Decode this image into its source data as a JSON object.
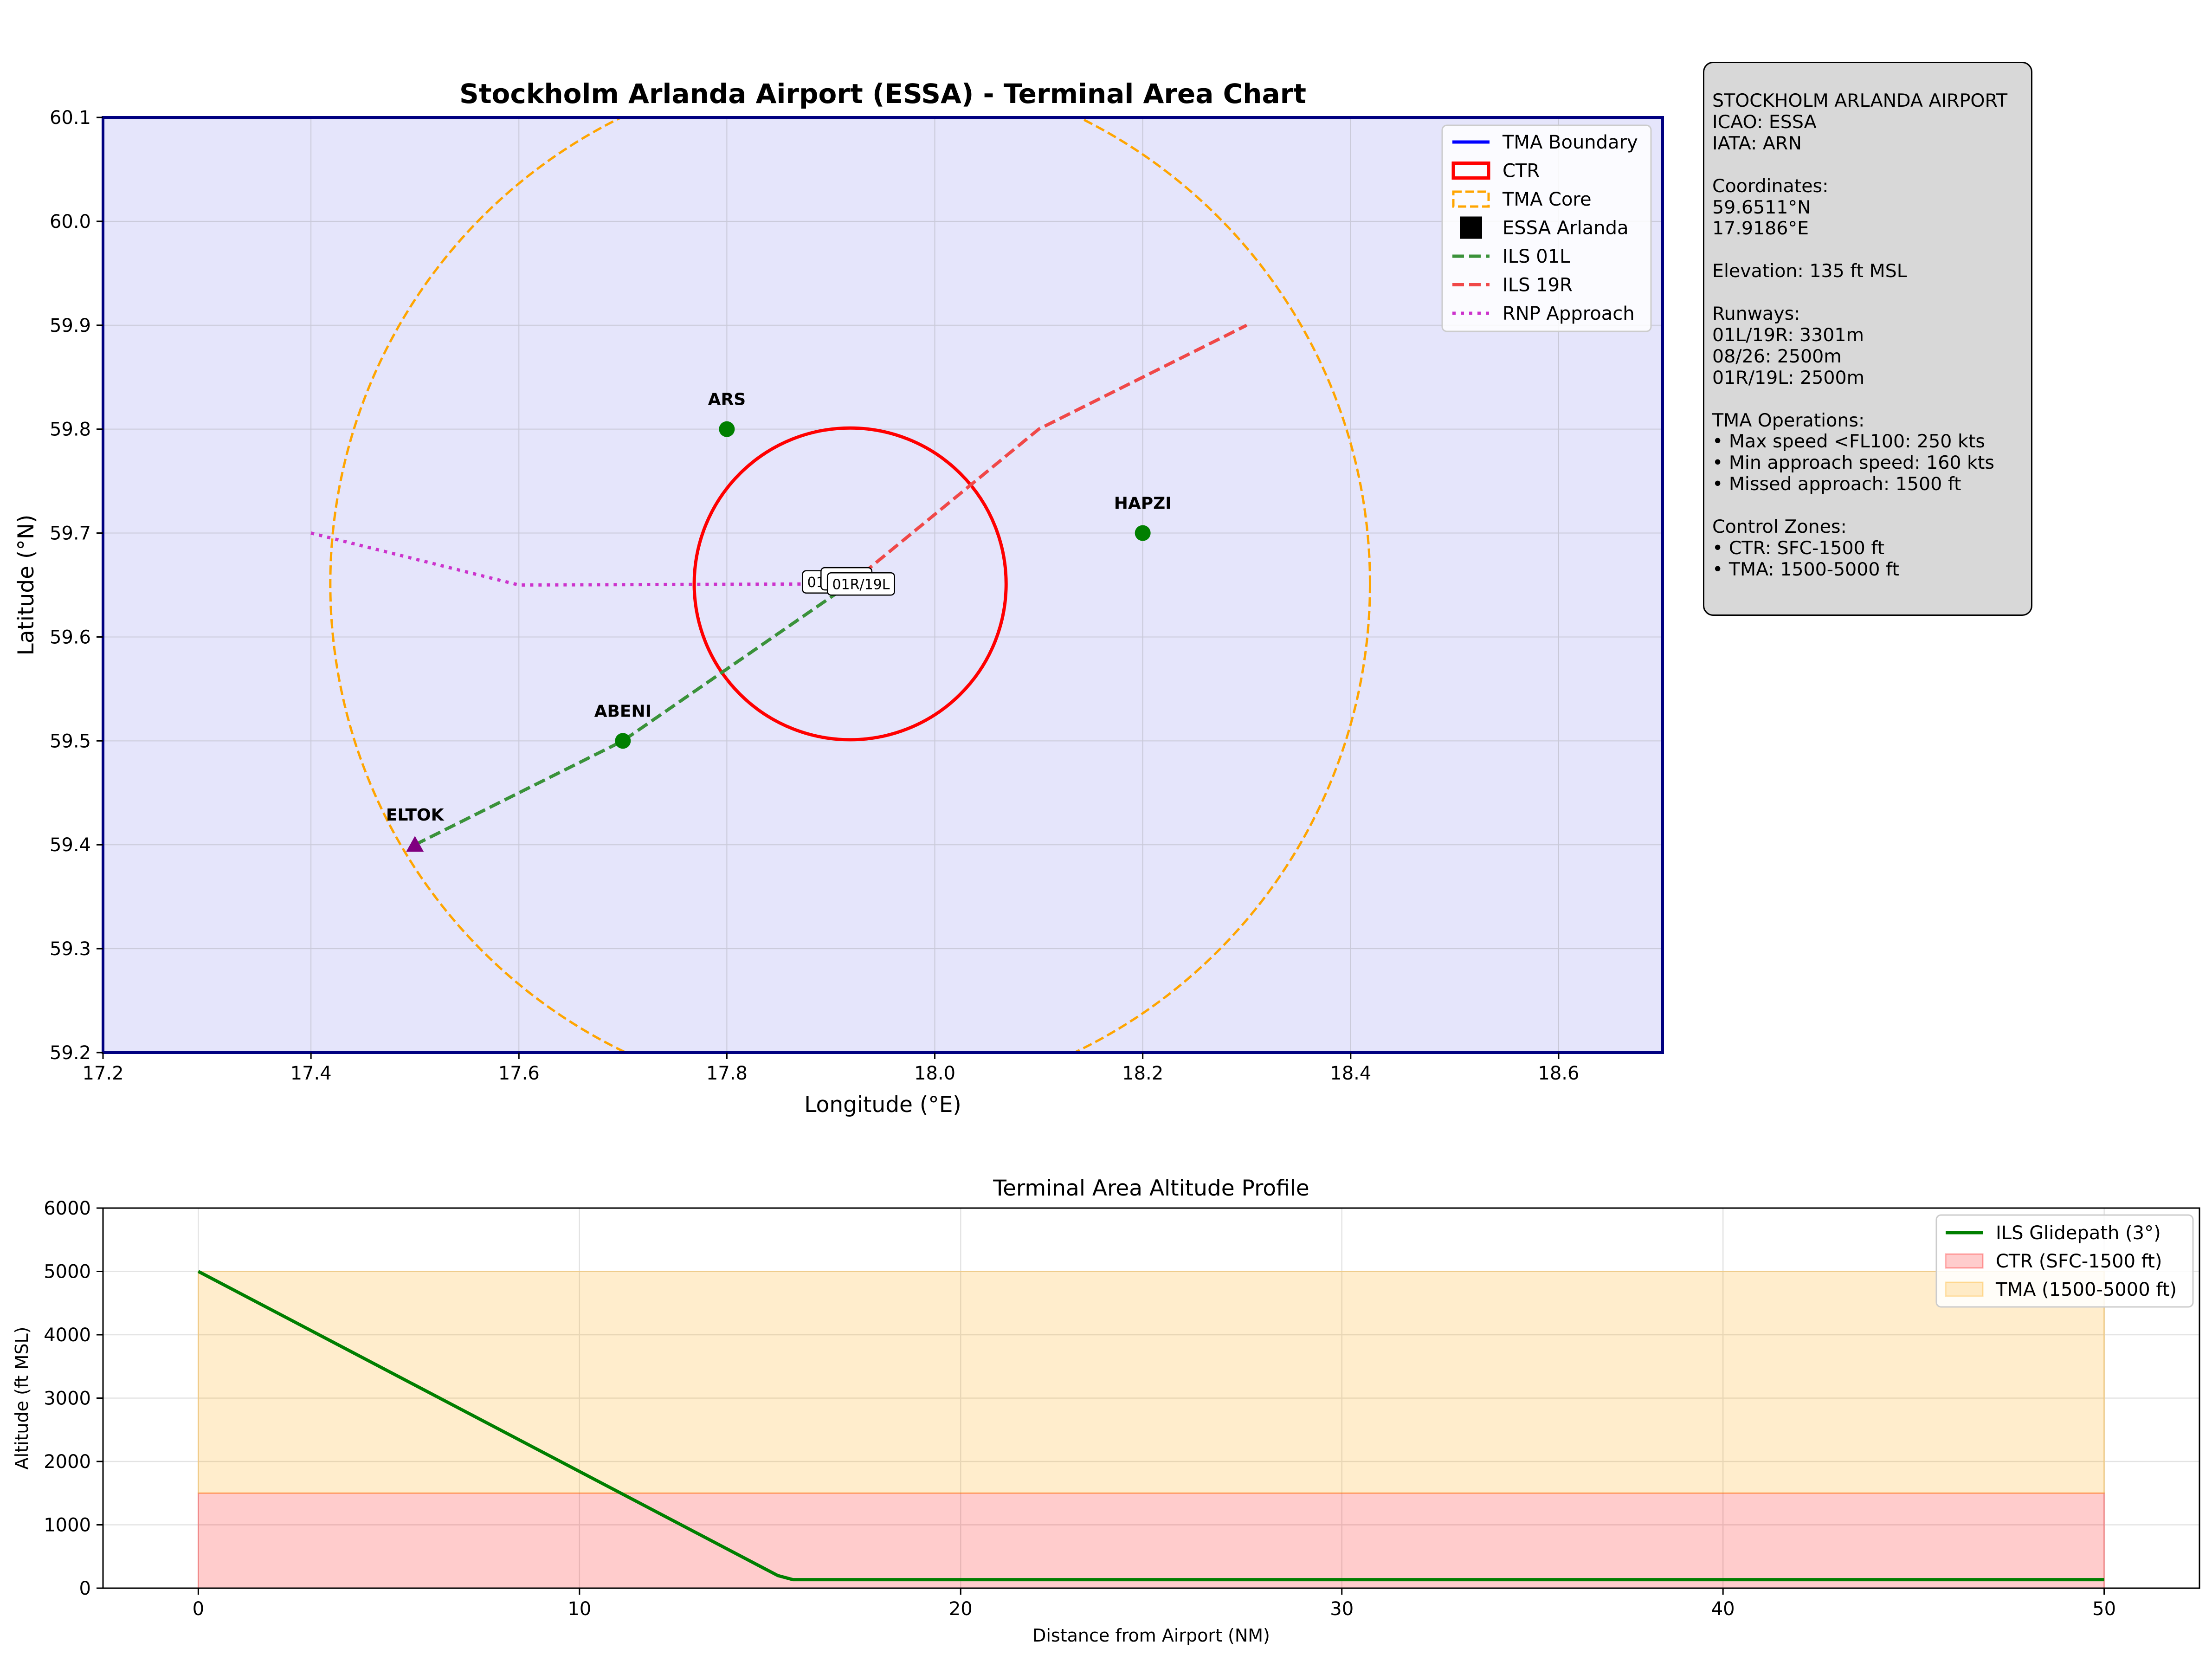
{
  "chart_data": [
    {
      "type": "scatter",
      "title": "Stockholm Arlanda Airport (ESSA) - Terminal Area Chart",
      "xlabel": "Longitude (°E)",
      "ylabel": "Latitude (°N)",
      "xlim": [
        17.2,
        18.7
      ],
      "ylim": [
        59.2,
        60.1
      ],
      "xticks": [
        "17.2",
        "17.4",
        "17.6",
        "17.8",
        "18.0",
        "18.2",
        "18.4",
        "18.6"
      ],
      "yticks": [
        "59.2",
        "59.3",
        "59.4",
        "59.5",
        "59.6",
        "59.7",
        "59.8",
        "59.9",
        "60.0",
        "60.1"
      ],
      "grid": true,
      "legend_position": "top-right",
      "legend": [
        {
          "label": "TMA Boundary",
          "style": "line",
          "color": "#0000ff"
        },
        {
          "label": "CTR",
          "style": "rect",
          "color": "#ff0000"
        },
        {
          "label": "TMA Core",
          "style": "rect-dashed",
          "color": "#ffa500"
        },
        {
          "label": "ESSA Arlanda",
          "style": "square",
          "color": "#000000"
        },
        {
          "label": "ILS 01L",
          "style": "dashed",
          "color": "#3a923a"
        },
        {
          "label": "ILS 19R",
          "style": "dashed",
          "color": "#f04848"
        },
        {
          "label": "RNP Approach",
          "style": "dotted",
          "color": "#cc33cc"
        }
      ],
      "airport": {
        "lon": 17.9186,
        "lat": 59.6511
      },
      "ctr": {
        "center_lon": 17.9186,
        "center_lat": 59.6511,
        "radius_deg": 0.15
      },
      "tma_core": {
        "center_lon": 17.9186,
        "center_lat": 59.6511,
        "radius_deg": 0.5
      },
      "ils_01l": [
        [
          17.5,
          59.4
        ],
        [
          17.7,
          59.5
        ],
        [
          17.9186,
          59.6511
        ]
      ],
      "ils_19r": [
        [
          17.9186,
          59.6511
        ],
        [
          18.1,
          59.8
        ],
        [
          18.3,
          59.9
        ]
      ],
      "rnp_approach": [
        [
          17.4,
          59.7
        ],
        [
          17.6,
          59.65
        ],
        [
          17.9186,
          59.6511
        ]
      ],
      "waypoints": [
        {
          "name": "ARS",
          "lon": 17.8,
          "lat": 59.8,
          "marker": "circle"
        },
        {
          "name": "HAPZI",
          "lon": 18.2,
          "lat": 59.7,
          "marker": "circle"
        },
        {
          "name": "ABENI",
          "lon": 17.7,
          "lat": 59.5,
          "marker": "circle"
        },
        {
          "name": "ELTOK",
          "lon": 17.5,
          "lat": 59.4,
          "marker": "triangle"
        }
      ],
      "runway_labels": [
        {
          "text": "01L/19R",
          "lon": 17.905,
          "lat": 59.653
        },
        {
          "text": "08/26",
          "lon": 17.915,
          "lat": 59.656
        },
        {
          "text": "01R/19L",
          "lon": 17.929,
          "lat": 59.651
        }
      ]
    },
    {
      "type": "area",
      "title": "Terminal Area Altitude Profile",
      "xlabel": "Distance from Airport (NM)",
      "ylabel": "Altitude (ft MSL)",
      "xlim": [
        -2.5,
        52.5
      ],
      "ylim": [
        0,
        6000
      ],
      "xticks": [
        "0",
        "10",
        "20",
        "30",
        "40",
        "50"
      ],
      "yticks": [
        "0",
        "1000",
        "2000",
        "3000",
        "4000",
        "5000",
        "6000"
      ],
      "grid": true,
      "legend_position": "top-right",
      "series": [
        {
          "name": "ILS Glidepath (3°)",
          "kind": "line",
          "color": "#007f00",
          "x": [
            0,
            15.2,
            15.6,
            50
          ],
          "y": [
            5000,
            200,
            135,
            135
          ]
        },
        {
          "name": "CTR (SFC-1500 ft)",
          "kind": "band",
          "color": "#ff0000",
          "x": [
            0,
            50
          ],
          "y_low": 0,
          "y_high": 1500
        },
        {
          "name": "TMA (1500-5000 ft)",
          "kind": "band",
          "color": "#ffa500",
          "x": [
            0,
            50
          ],
          "y_low": 1500,
          "y_high": 5000
        }
      ]
    }
  ],
  "info_panel": {
    "lines": [
      "STOCKHOLM ARLANDA AIRPORT",
      "ICAO: ESSA",
      "IATA: ARN",
      "",
      "Coordinates:",
      "59.6511°N",
      "17.9186°E",
      "",
      "Elevation: 135 ft MSL",
      "",
      "Runways:",
      "01L/19R: 3301m",
      "08/26: 2500m",
      "01R/19L: 2500m",
      "",
      "TMA Operations:",
      "• Max speed <FL100: 250 kts",
      "• Min approach speed: 160 kts",
      "• Missed approach: 1500 ft",
      "",
      "Control Zones:",
      "• CTR: SFC-1500 ft",
      "• TMA: 1500-5000 ft"
    ]
  }
}
